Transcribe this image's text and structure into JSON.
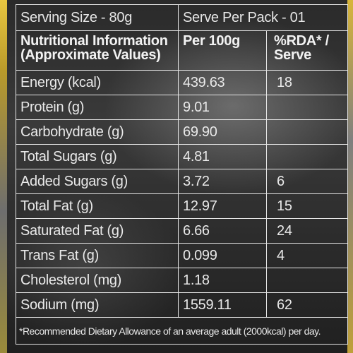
{
  "serving": {
    "size_label": "Serving Size - 80g",
    "per_pack_label": "Serve Per Pack - 01"
  },
  "header": {
    "nutrition_label": "Nutritional Information (Approximate Values)",
    "per100_label": "Per 100g",
    "rda_label": "%RDA* / Serve"
  },
  "rows": [
    {
      "name": "Energy (kcal)",
      "per100": "439.63",
      "rda": "18"
    },
    {
      "name": "Protein (g)",
      "per100": "9.01",
      "rda": ""
    },
    {
      "name": "Carbohydrate (g)",
      "per100": "69.90",
      "rda": ""
    },
    {
      "name": "Total Sugars (g)",
      "per100": "4.81",
      "rda": ""
    },
    {
      "name": "Added Sugars (g)",
      "per100": "3.72",
      "rda": "6"
    },
    {
      "name": "Total Fat (g)",
      "per100": "12.97",
      "rda": "15"
    },
    {
      "name": "Saturated Fat (g)",
      "per100": "6.66",
      "rda": "24"
    },
    {
      "name": "Trans Fat (g)",
      "per100": "0.099",
      "rda": "4"
    },
    {
      "name": "Cholesterol (mg)",
      "per100": "1.18",
      "rda": ""
    },
    {
      "name": "Sodium (mg)",
      "per100": "1559.11",
      "rda": "62"
    }
  ],
  "footnote": "*Recommended Dietary Allowance of an average adult (2000kcal) per day."
}
